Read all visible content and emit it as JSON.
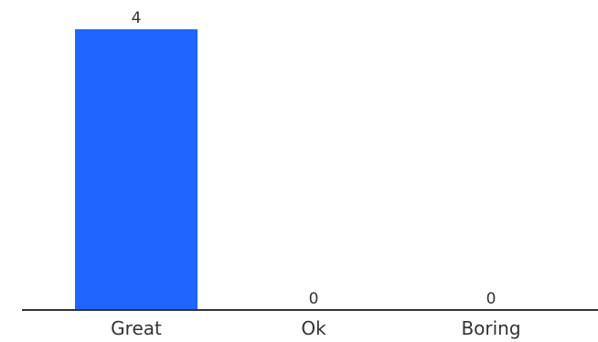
{
  "chart_data": {
    "type": "bar",
    "categories": [
      "Great",
      "Ok",
      "Boring"
    ],
    "values": [
      4,
      0,
      0
    ],
    "value_labels": [
      "4",
      "0",
      "0"
    ],
    "title": "",
    "xlabel": "",
    "ylabel": "",
    "ylim": [
      0,
      4
    ],
    "grid": false,
    "legend": "none",
    "colors": {
      "bar": "#1e66ff",
      "axis": "#333333",
      "text": "#333333"
    }
  }
}
